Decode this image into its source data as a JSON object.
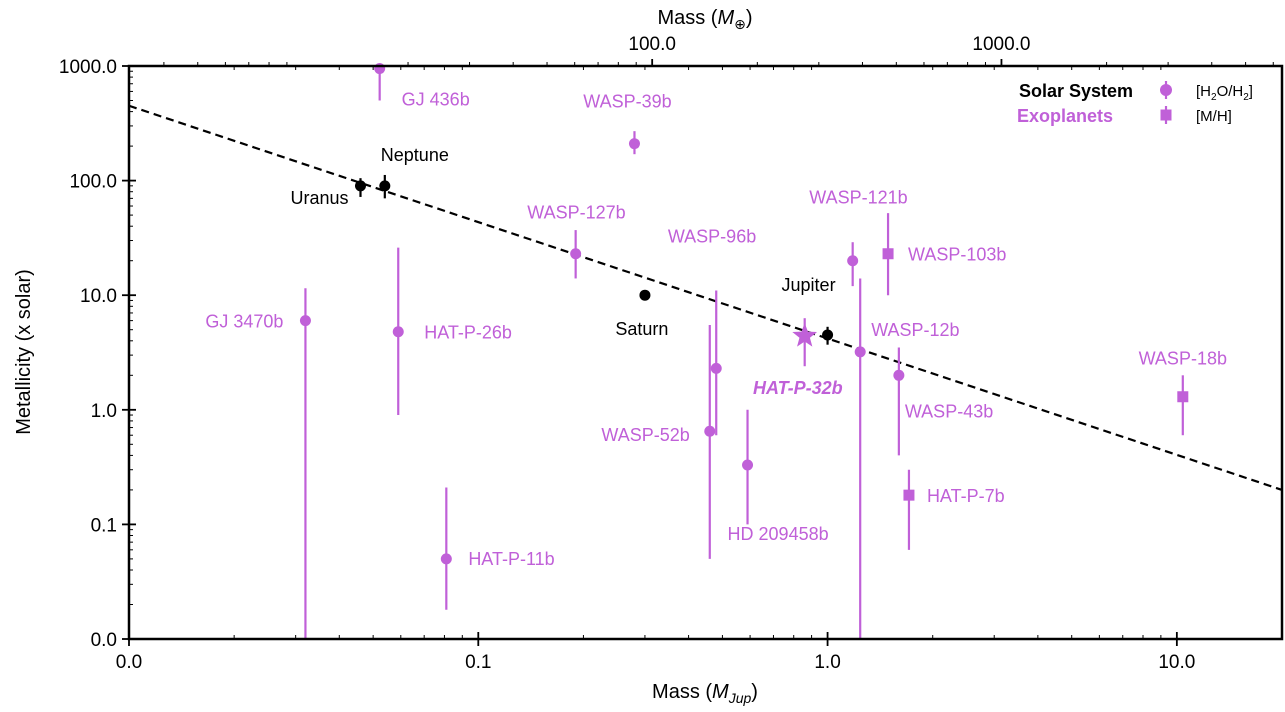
{
  "chart_data": {
    "type": "scatter",
    "xlabel": "Mass (MJup)",
    "xlabel_parts": {
      "prefix": "Mass (",
      "var": "M",
      "sub": "Jup",
      "suffix": ")"
    },
    "xlabel_top": "Mass (M⊕)",
    "xlabel_top_parts": {
      "prefix": "Mass (",
      "var": "M",
      "sub": "⊕",
      "suffix": ")"
    },
    "ylabel": "Metallicity (x solar)",
    "xscale": "log",
    "yscale": "log",
    "xlim": [
      0.01,
      20
    ],
    "ylim": [
      0.01,
      1000
    ],
    "x_ticks": [
      {
        "value": 0.01,
        "label": "0.0"
      },
      {
        "value": 0.1,
        "label": "0.1"
      },
      {
        "value": 1,
        "label": "1.0"
      },
      {
        "value": 10,
        "label": "10.0"
      }
    ],
    "x_top_ticks": [
      {
        "value_earth": 100,
        "label": "100.0"
      },
      {
        "value_earth": 1000,
        "label": "1000.0"
      }
    ],
    "y_ticks": [
      {
        "value": 0.01,
        "label": "0.0"
      },
      {
        "value": 0.1,
        "label": "0.1"
      },
      {
        "value": 1,
        "label": "1.0"
      },
      {
        "value": 10,
        "label": "10.0"
      },
      {
        "value": 100,
        "label": "100.0"
      },
      {
        "value": 1000,
        "label": "1000.0"
      }
    ],
    "earth_masses_per_jupiter": 317.8,
    "trend_line": {
      "x": [
        0.01,
        20
      ],
      "y": [
        450,
        0.2
      ],
      "style": "dashed"
    },
    "legend": {
      "placement": "top-right",
      "groups": [
        {
          "label": "Solar System",
          "color": "#000000"
        },
        {
          "label": "Exoplanets",
          "color": "#c060d8"
        }
      ],
      "markers": [
        {
          "symbol": "circle",
          "label": "[H2O/H2]",
          "parts": {
            "a": "[H",
            "s1": "2",
            "b": "O/H",
            "s2": "2",
            "c": "]"
          }
        },
        {
          "symbol": "square",
          "label": "[M/H]",
          "parts": {
            "a": "[M/H]"
          }
        }
      ]
    },
    "colors": {
      "solar_system": "#000000",
      "exoplanet": "#c060d8"
    },
    "series": [
      {
        "name": "Solar System",
        "points": [
          {
            "label": "Uranus",
            "x": 0.046,
            "y": 90,
            "ylo": 72,
            "yhi": 105,
            "marker": "circle",
            "label_anchor": "end",
            "label_dx": -12,
            "label_dy": 18
          },
          {
            "label": "Neptune",
            "x": 0.054,
            "y": 90,
            "ylo": 70,
            "yhi": 112,
            "marker": "circle",
            "label_anchor": "middle",
            "label_dx": 30,
            "label_dy": -25
          },
          {
            "label": "Saturn",
            "x": 0.3,
            "y": 10,
            "marker": "circle",
            "label_anchor": "middle",
            "label_dx": -3,
            "label_dy": 40
          },
          {
            "label": "Jupiter",
            "x": 1.0,
            "y": 4.5,
            "ylo": 3.7,
            "yhi": 5.3,
            "marker": "circle",
            "label_anchor": "end",
            "label_dx": 8,
            "label_dy": -44
          }
        ]
      },
      {
        "name": "Exoplanets",
        "points": [
          {
            "label": "GJ 436b",
            "x": 0.0522,
            "y": 950,
            "ylo": 500,
            "yhi": 1000,
            "marker": "circle",
            "label_anchor": "start",
            "label_dx": 22,
            "label_dy": 37
          },
          {
            "label": "WASP-39b",
            "x": 0.28,
            "y": 210,
            "ylo": 170,
            "yhi": 270,
            "marker": "circle",
            "label_anchor": "middle",
            "label_dx": -7,
            "label_dy": -36
          },
          {
            "label": "WASP-127b",
            "x": 0.19,
            "y": 23,
            "ylo": 14,
            "yhi": 37,
            "marker": "circle",
            "label_anchor": "end",
            "label_dx": 50,
            "label_dy": -35
          },
          {
            "label": "WASP-96b",
            "x": 0.48,
            "y": 2.3,
            "ylo": 0.6,
            "yhi": 11,
            "marker": "circle",
            "label_anchor": "end",
            "label_dx": 40,
            "label_dy": -126
          },
          {
            "label": "WASP-52b",
            "x": 0.46,
            "y": 0.65,
            "ylo": 0.05,
            "yhi": 5.5,
            "marker": "circle",
            "label_anchor": "end",
            "label_dx": -20,
            "label_dy": 10
          },
          {
            "label": "HD 209458b",
            "x": 0.59,
            "y": 0.33,
            "ylo": 0.1,
            "yhi": 1.0,
            "marker": "circle",
            "label_anchor": "start",
            "label_dx": -20,
            "label_dy": 75
          },
          {
            "label": "HAT-P-32b",
            "x": 0.86,
            "y": 4.4,
            "ylo": 2.4,
            "yhi": 6.3,
            "marker": "star",
            "highlight": true,
            "label_anchor": "end",
            "label_dx": 38,
            "label_dy": 58
          },
          {
            "label": "GJ 3470b",
            "x": 0.032,
            "y": 6,
            "ylo": 0.01,
            "yhi": 11.5,
            "marker": "circle",
            "label_anchor": "end",
            "label_dx": -22,
            "label_dy": 7
          },
          {
            "label": "HAT-P-26b",
            "x": 0.059,
            "y": 4.8,
            "ylo": 0.9,
            "yhi": 26,
            "marker": "circle",
            "label_anchor": "start",
            "label_dx": 26,
            "label_dy": 7
          },
          {
            "label": "HAT-P-11b",
            "x": 0.081,
            "y": 0.05,
            "ylo": 0.018,
            "yhi": 0.21,
            "marker": "circle",
            "label_anchor": "start",
            "label_dx": 22,
            "label_dy": 6
          },
          {
            "label": "WASP-121b",
            "x": 1.18,
            "y": 20,
            "ylo": 12,
            "yhi": 29,
            "marker": "circle",
            "label_anchor": "end",
            "label_dx": 55,
            "label_dy": -57
          },
          {
            "label": "WASP-103b",
            "x": 1.49,
            "y": 23,
            "ylo": 10,
            "yhi": 52,
            "marker": "square",
            "label_anchor": "start",
            "label_dx": 20,
            "label_dy": 7
          },
          {
            "label": "WASP-12b",
            "x": 1.24,
            "y": 3.2,
            "ylo": 0.01,
            "yhi": 14,
            "marker": "circle",
            "label_anchor": "start",
            "label_dx": 11,
            "label_dy": -16
          },
          {
            "label": "WASP-43b",
            "x": 1.6,
            "y": 2.0,
            "ylo": 0.4,
            "yhi": 3.5,
            "marker": "circle",
            "label_anchor": "start",
            "label_dx": 6,
            "label_dy": 42
          },
          {
            "label": "HAT-P-7b",
            "x": 1.71,
            "y": 0.18,
            "ylo": 0.06,
            "yhi": 0.3,
            "marker": "square",
            "label_anchor": "start",
            "label_dx": 18,
            "label_dy": 7
          },
          {
            "label": "WASP-18b",
            "x": 10.4,
            "y": 1.3,
            "ylo": 0.6,
            "yhi": 2.0,
            "marker": "square",
            "label_anchor": "middle",
            "label_dx": 0,
            "label_dy": -32
          }
        ]
      }
    ]
  }
}
